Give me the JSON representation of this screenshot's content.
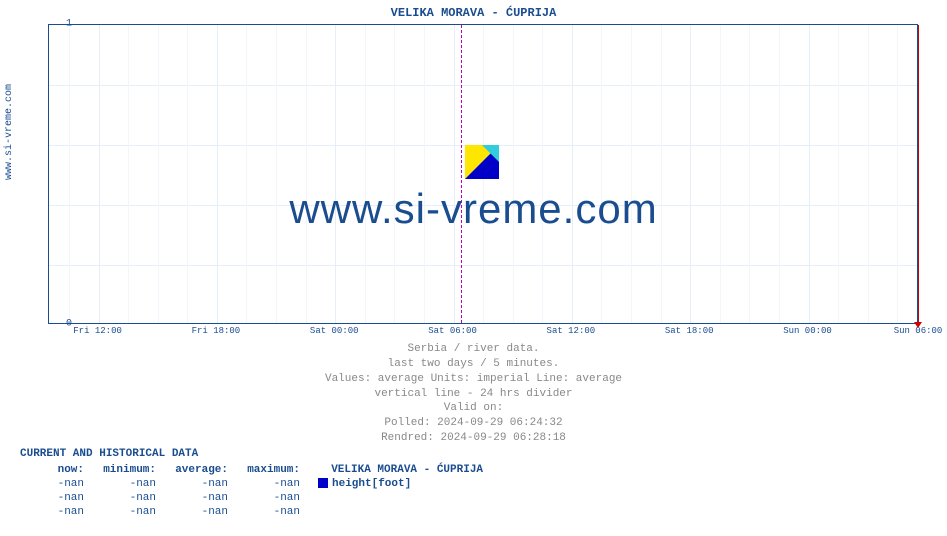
{
  "chart": {
    "title": "VELIKA MORAVA -  ĆUPRIJA",
    "y_axis_side_label": "www.si-vreme.com",
    "background_color": "#ffffff",
    "border_color": "#1a4d8f",
    "grid_color": "#e6eef7",
    "divider_color": "#c000c0",
    "end_marker_color": "#d00000",
    "title_color": "#1a4d8f",
    "title_fontsize": 12,
    "tick_color": "#1a4d8f",
    "tick_fontsize": 10,
    "ylim": [
      0,
      1
    ],
    "yticks": [
      {
        "value": 0,
        "label": "0"
      },
      {
        "value": 1,
        "label": "1"
      }
    ],
    "xticks": [
      {
        "pos_pct": 5.7,
        "label": "Fri 12:00"
      },
      {
        "pos_pct": 19.3,
        "label": "Fri 18:00"
      },
      {
        "pos_pct": 32.9,
        "label": "Sat 00:00"
      },
      {
        "pos_pct": 46.5,
        "label": "Sat 06:00"
      },
      {
        "pos_pct": 60.1,
        "label": "Sat 12:00"
      },
      {
        "pos_pct": 73.7,
        "label": "Sat 18:00"
      },
      {
        "pos_pct": 87.3,
        "label": "Sun 00:00"
      },
      {
        "pos_pct": 100.0,
        "label": "Sun 06:00"
      }
    ],
    "minor_grid_pct": [
      2.3,
      9.1,
      12.5,
      15.9,
      22.7,
      26.1,
      29.5,
      36.3,
      39.7,
      43.1,
      49.9,
      53.3,
      56.7,
      63.5,
      66.9,
      70.3,
      77.1,
      80.5,
      83.9,
      90.7,
      94.1,
      97.5
    ],
    "divider_pos_pct": 47.4,
    "end_marker_pos_pct": 100.0
  },
  "watermark": {
    "text": "www.si-vreme.com",
    "text_color": "#1a4d8f",
    "text_fontsize": 42,
    "logo_colors": {
      "top_left": "#ffe600",
      "top_right": "#33ccdd",
      "bottom": "#0000c8"
    }
  },
  "caption": {
    "lines": [
      "Serbia / river data.",
      "last two days / 5 minutes.",
      "Values: average  Units: imperial  Line: average",
      "vertical line - 24 hrs  divider",
      "Valid on:",
      "Polled: 2024-09-29 06:24:32",
      "Rendred: 2024-09-29 06:28:18"
    ],
    "color": "#888888",
    "fontsize": 11
  },
  "data_block": {
    "header": "CURRENT AND HISTORICAL DATA",
    "columns": [
      "now:",
      "minimum:",
      "average:",
      "maximum:"
    ],
    "series_label": "VELIKA MORAVA -  ĆUPRIJA",
    "series_swatch_color": "#0000c8",
    "row_metric": "height[foot]",
    "rows": [
      [
        "-nan",
        "-nan",
        "-nan",
        "-nan"
      ],
      [
        "-nan",
        "-nan",
        "-nan",
        "-nan"
      ],
      [
        "-nan",
        "-nan",
        "-nan",
        "-nan"
      ]
    ],
    "text_color": "#1a4d8f"
  }
}
